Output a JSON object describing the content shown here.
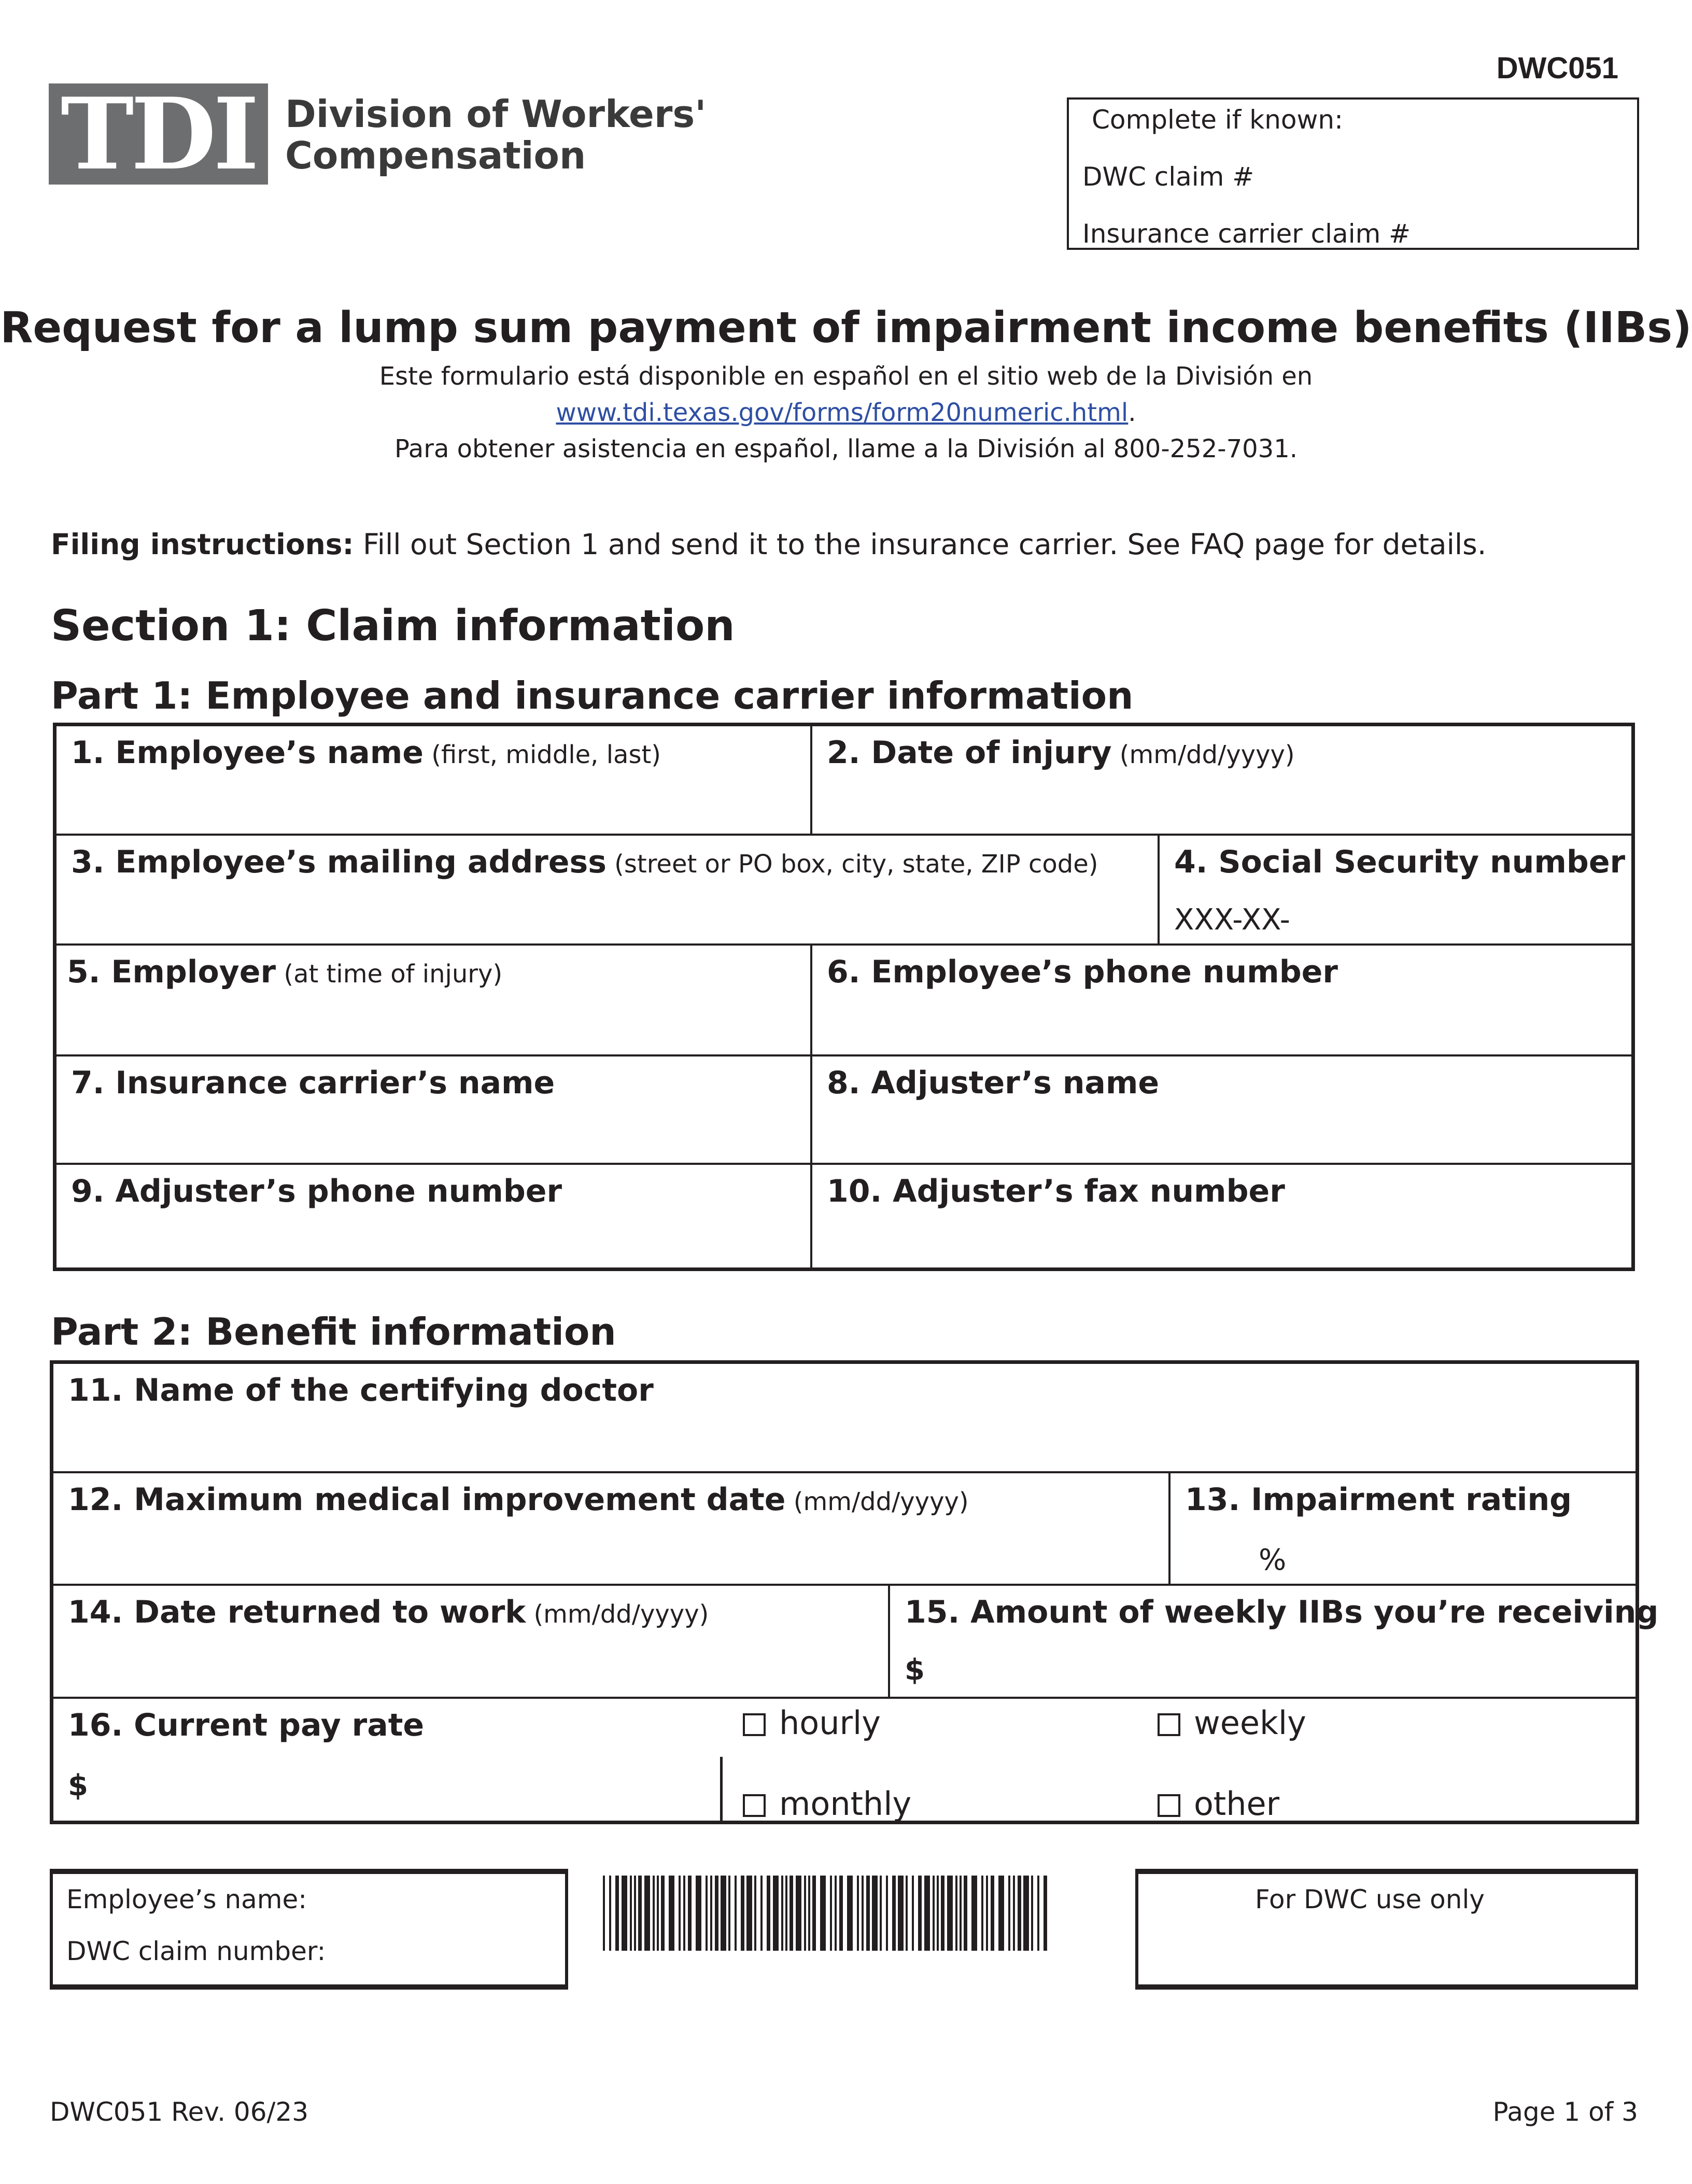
{
  "header": {
    "form_id": "DWC051",
    "logo_text": "TDI",
    "division_line1": "Division of Workers'",
    "division_line2": "Compensation",
    "logo_color": "#6d6e70",
    "known_box": {
      "title": "Complete if known:",
      "dwc_claim": "DWC claim #",
      "carrier_claim": "Insurance carrier claim #"
    }
  },
  "title": "Request for a lump sum payment of impairment income benefits (IIBs)",
  "spanish": {
    "line1": "Este formulario está disponible en español en el sitio web de la División en",
    "link": "www.tdi.texas.gov/forms/form20numeric.html",
    "link_suffix": ".",
    "line3": "Para obtener asistencia en español, llame a la División al 800-252-7031.",
    "link_color": "#2e4fa3"
  },
  "filing": {
    "label": "Filing instructions:",
    "text": " Fill out Section 1 and send it to the insurance carrier. See FAQ page for details."
  },
  "section1": "Section 1: Claim information",
  "part1": {
    "title": "Part 1: Employee and insurance carrier information",
    "fields": [
      {
        "label": "1. Employee’s name",
        "hint": " (first, middle, last)"
      },
      {
        "label": "2. Date of injury",
        "hint": " (mm/dd/yyyy)"
      },
      {
        "label": "3. Employee’s mailing address",
        "hint": " (street or PO box, city, state, ZIP code)"
      },
      {
        "label": "4. Social Security number",
        "value": "XXX-XX-"
      },
      {
        "label": "5. Employer",
        "hint": " (at time of injury)"
      },
      {
        "label": "6. Employee’s phone number"
      },
      {
        "label": "7. Insurance carrier’s name"
      },
      {
        "label": "8. Adjuster’s name"
      },
      {
        "label": "9. Adjuster’s phone number"
      },
      {
        "label": "10. Adjuster’s fax number"
      }
    ]
  },
  "part2": {
    "title": "Part 2: Benefit information",
    "fields": [
      {
        "label": "11. Name of the certifying doctor"
      },
      {
        "label": "12. Maximum medical improvement date",
        "hint": " (mm/dd/yyyy)"
      },
      {
        "label": "13. Impairment rating",
        "unit": "%"
      },
      {
        "label": "14. Date returned to work",
        "hint": " (mm/dd/yyyy)"
      },
      {
        "label": "15. Amount of weekly IIBs you’re receiving",
        "unit": "$"
      },
      {
        "label": "16. Current pay rate",
        "unit": "$"
      }
    ],
    "pay_options": [
      "hourly",
      "weekly",
      "monthly",
      "other"
    ]
  },
  "bottom": {
    "employee_name": "Employee’s name:",
    "dwc_claim_number": "DWC claim number:",
    "dwc_use": "For DWC use only"
  },
  "footer": {
    "revision": "DWC051 Rev. 06/23",
    "page": "Page 1 of 3"
  }
}
